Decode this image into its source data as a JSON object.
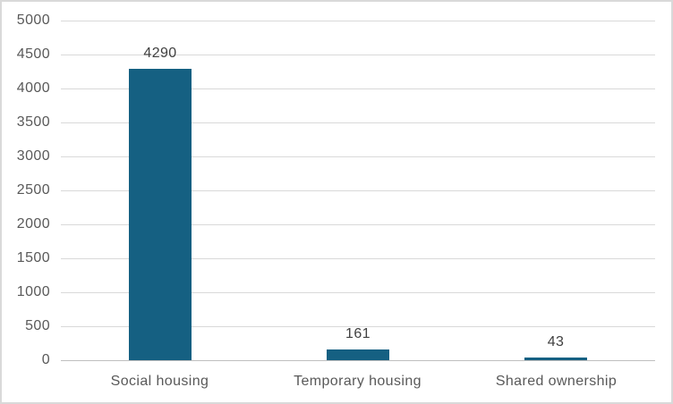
{
  "chart_data": {
    "type": "bar",
    "categories": [
      "Social housing",
      "Temporary housing",
      "Shared ownership"
    ],
    "values": [
      4290,
      161,
      43
    ],
    "data_labels": [
      "4290",
      "161",
      "43"
    ],
    "yticks": [
      0,
      500,
      1000,
      1500,
      2000,
      2500,
      3000,
      3500,
      4000,
      4500,
      5000
    ],
    "ylim": [
      0,
      5000
    ],
    "ytick_step": 500,
    "grid": true,
    "legend": "none",
    "title": "",
    "xlabel": "",
    "ylabel": "",
    "colors": {
      "bar": "#156082",
      "gridline": "#d9d9d9",
      "axis_line": "#bfbfbf",
      "tick_label": "#595959",
      "category_label": "#595959",
      "data_label": "#404040",
      "background": "#ffffff",
      "frame_border": "#d9d9d9"
    }
  }
}
